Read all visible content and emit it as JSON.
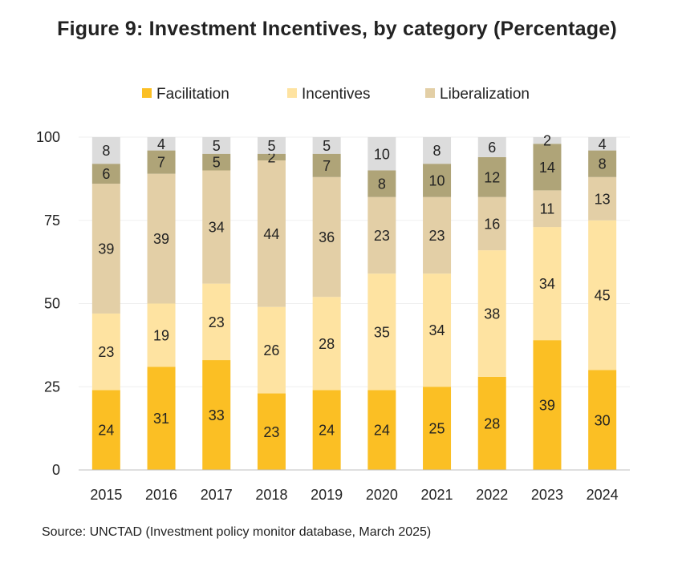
{
  "page": {
    "title": "Figure 9: Investment Incentives, by category (Percentage)"
  },
  "source": "Source: UNCTAD (Investment policy monitor database, March 2025)",
  "colors": {
    "facilitation": "#FBBF24",
    "incentives": "#FEE3A1",
    "liberalization": "#E3CFA6",
    "fourth_series": "#AFA478",
    "remainder": "#DCDCDC",
    "axis": "#BFBFBF",
    "grid": "#EFEFEF"
  },
  "chart_data": {
    "type": "bar",
    "stacked": true,
    "title": "Figure 9: Investment Incentives, by category (Percentage)",
    "xlabel": "",
    "ylabel": "",
    "ylim": [
      0,
      100
    ],
    "yticks": [
      0,
      25,
      50,
      75,
      100
    ],
    "grid": true,
    "legend_position": "top",
    "categories": [
      "2015",
      "2016",
      "2017",
      "2018",
      "2019",
      "2020",
      "2021",
      "2022",
      "2023",
      "2024"
    ],
    "series": [
      {
        "name": "Facilitation",
        "color_key": "facilitation",
        "in_legend": true,
        "values": [
          24,
          31,
          33,
          23,
          24,
          24,
          25,
          28,
          39,
          30
        ]
      },
      {
        "name": "Incentives",
        "color_key": "incentives",
        "in_legend": true,
        "values": [
          23,
          19,
          23,
          26,
          28,
          35,
          34,
          38,
          34,
          45
        ]
      },
      {
        "name": "Liberalization",
        "color_key": "liberalization",
        "in_legend": true,
        "values": [
          39,
          39,
          34,
          44,
          36,
          23,
          23,
          16,
          11,
          13
        ]
      },
      {
        "name": "",
        "color_key": "fourth_series",
        "in_legend": false,
        "values": [
          6,
          7,
          5,
          2,
          7,
          8,
          10,
          12,
          14,
          8
        ]
      },
      {
        "name": "",
        "color_key": "remainder",
        "in_legend": false,
        "values": [
          8,
          4,
          5,
          5,
          5,
          10,
          8,
          6,
          2,
          4
        ]
      }
    ]
  }
}
